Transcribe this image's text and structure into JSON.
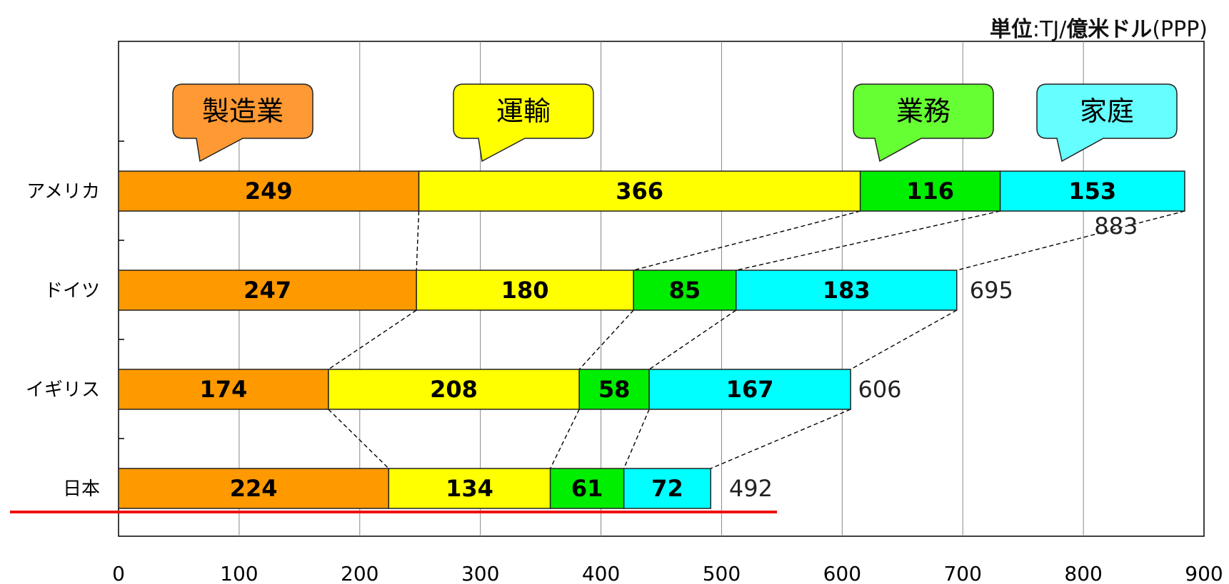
{
  "unit_label": {
    "prefix": "単位",
    "sep": ":",
    "unit": "TJ/",
    "unit2": "億米ドル",
    "ppp": "(PPP)"
  },
  "colors": {
    "manufacturing": "#ff9900",
    "transport": "#ffff00",
    "business": "#00ee00",
    "household": "#00ffff",
    "callout_manufacturing": "#ff9933",
    "callout_business": "#66ff33",
    "callout_household": "#66ffff",
    "highlight_line": "#ee1111"
  },
  "chart_data": {
    "type": "bar",
    "orientation": "horizontal",
    "stacked": true,
    "categories": [
      "アメリカ",
      "ドイツ",
      "イギリス",
      "日本"
    ],
    "series": [
      {
        "name": "製造業",
        "values": [
          249,
          247,
          174,
          224
        ]
      },
      {
        "name": "運輸",
        "values": [
          366,
          180,
          208,
          134
        ]
      },
      {
        "name": "業務",
        "values": [
          116,
          85,
          58,
          61
        ]
      },
      {
        "name": "家庭",
        "values": [
          153,
          183,
          167,
          72
        ]
      }
    ],
    "totals": [
      883,
      695,
      606,
      492
    ],
    "x_ticks": [
      "0",
      "100",
      "200",
      "300",
      "400",
      "500",
      "600",
      "700",
      "800",
      "900"
    ],
    "xlim": [
      0,
      900
    ],
    "grid": true,
    "legend": "callouts above top bar"
  }
}
